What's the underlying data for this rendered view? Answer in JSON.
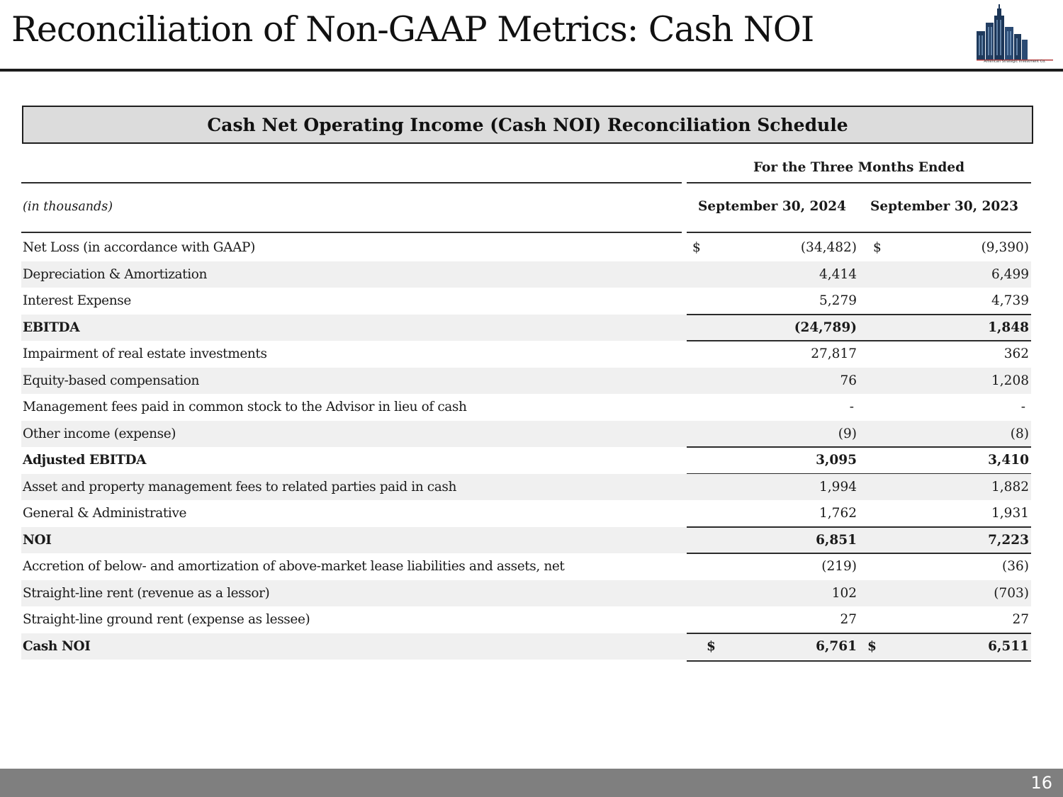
{
  "slide": {
    "title": "Reconciliation of Non-GAAP Metrics: Cash NOI",
    "logo_caption": "American Strategic Investment Co.",
    "page_number": "16"
  },
  "schedule": {
    "title": "Cash Net Operating Income (Cash NOI) Reconciliation Schedule",
    "period_header": "For the Three Months Ended",
    "units_label": "(in thousands)",
    "columns": [
      "September 30, 2024",
      "September 30, 2023"
    ],
    "currency_symbol": "$",
    "rows": [
      {
        "label": "Net Loss (in accordance with GAAP)",
        "values": [
          "(34,482)",
          "(9,390)"
        ]
      },
      {
        "label": "Depreciation & Amortization",
        "values": [
          "4,414",
          "6,499"
        ]
      },
      {
        "label": "Interest Expense",
        "values": [
          "5,279",
          "4,739"
        ]
      },
      {
        "label": "EBITDA",
        "values": [
          "(24,789)",
          "1,848"
        ]
      },
      {
        "label": "Impairment of real estate investments",
        "values": [
          "27,817",
          "362"
        ]
      },
      {
        "label": "Equity-based compensation",
        "values": [
          "76",
          "1,208"
        ]
      },
      {
        "label": "Management fees paid in common stock to the Advisor in lieu of cash",
        "values": [
          "-",
          "-"
        ]
      },
      {
        "label": "Other income (expense)",
        "values": [
          "(9)",
          "(8)"
        ]
      },
      {
        "label": "Adjusted EBITDA",
        "values": [
          "3,095",
          "3,410"
        ]
      },
      {
        "label": "Asset and property management fees to related parties paid in cash",
        "values": [
          "1,994",
          "1,882"
        ]
      },
      {
        "label": "General & Administrative",
        "values": [
          "1,762",
          "1,931"
        ]
      },
      {
        "label": "NOI",
        "values": [
          "6,851",
          "7,223"
        ]
      },
      {
        "label": "Accretion of below- and amortization of above-market lease liabilities and assets, net",
        "values": [
          "(219)",
          "(36)"
        ]
      },
      {
        "label": "Straight-line rent (revenue as a lessor)",
        "values": [
          "102",
          "(703)"
        ]
      },
      {
        "label": "Straight-line ground rent (expense as lessee)",
        "values": [
          "27",
          "27"
        ]
      },
      {
        "label": "Cash NOI",
        "values": [
          "6,761",
          "6,511"
        ]
      }
    ]
  }
}
